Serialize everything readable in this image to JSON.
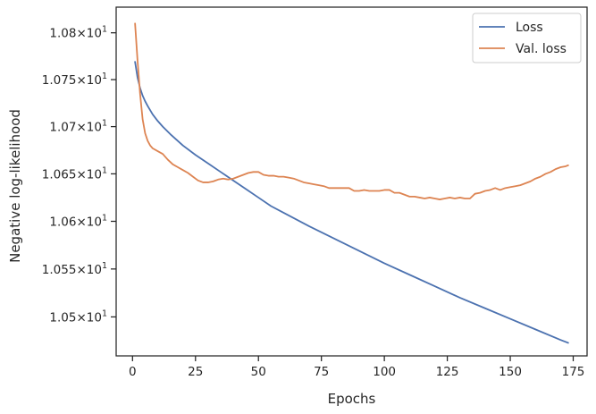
{
  "chart_data": {
    "type": "line",
    "xlabel": "Epochs",
    "ylabel": "Negative log-likelihood",
    "xlim": [
      -6.5,
      180.5
    ],
    "ylim": [
      10.4595,
      10.8275
    ],
    "x_ticks": [
      0,
      25,
      50,
      75,
      100,
      125,
      150,
      175
    ],
    "x_tick_labels": [
      "0",
      "25",
      "50",
      "75",
      "100",
      "125",
      "150",
      "175"
    ],
    "y_ticks": [
      10.5,
      10.55,
      10.6,
      10.65,
      10.7,
      10.75,
      10.8
    ],
    "y_tick_labels": [
      {
        "mantissa": "1.05",
        "times": "×",
        "base": "10",
        "exp": "1"
      },
      {
        "mantissa": "1.055",
        "times": "×",
        "base": "10",
        "exp": "1"
      },
      {
        "mantissa": "1.06",
        "times": "×",
        "base": "10",
        "exp": "1"
      },
      {
        "mantissa": "1.065",
        "times": "×",
        "base": "10",
        "exp": "1"
      },
      {
        "mantissa": "1.07",
        "times": "×",
        "base": "10",
        "exp": "1"
      },
      {
        "mantissa": "1.075",
        "times": "×",
        "base": "10",
        "exp": "1"
      },
      {
        "mantissa": "1.08",
        "times": "×",
        "base": "10",
        "exp": "1"
      }
    ],
    "scale_y": "log",
    "grid": false,
    "legend_position": "top-right",
    "series": [
      {
        "name": "Loss",
        "color": "#4c72b0",
        "x": [
          1,
          2,
          3,
          4,
          5,
          6,
          8,
          10,
          12,
          15,
          20,
          25,
          30,
          35,
          40,
          45,
          50,
          55,
          60,
          70,
          80,
          90,
          100,
          110,
          120,
          130,
          140,
          150,
          160,
          170,
          173
        ],
        "y": [
          10.769,
          10.752,
          10.741,
          10.733,
          10.727,
          10.722,
          10.713,
          10.706,
          10.7,
          10.692,
          10.68,
          10.67,
          10.661,
          10.652,
          10.643,
          10.634,
          10.625,
          10.616,
          10.609,
          10.595,
          10.582,
          10.569,
          10.556,
          10.544,
          10.532,
          10.52,
          10.509,
          10.498,
          10.487,
          10.476,
          10.473
        ]
      },
      {
        "name": "Val. loss",
        "color": "#dd8452",
        "x": [
          1,
          2,
          3,
          4,
          5,
          6,
          7,
          8,
          10,
          12,
          14,
          16,
          18,
          20,
          22,
          24,
          26,
          28,
          30,
          32,
          34,
          36,
          38,
          40,
          42,
          44,
          46,
          48,
          50,
          52,
          54,
          56,
          58,
          60,
          62,
          64,
          66,
          68,
          70,
          72,
          74,
          76,
          78,
          80,
          82,
          84,
          86,
          88,
          90,
          92,
          94,
          96,
          98,
          100,
          102,
          104,
          106,
          108,
          110,
          112,
          114,
          116,
          118,
          120,
          122,
          124,
          126,
          128,
          130,
          132,
          134,
          136,
          138,
          140,
          142,
          144,
          146,
          148,
          150,
          152,
          154,
          156,
          158,
          160,
          162,
          164,
          166,
          168,
          170,
          172,
          173
        ],
        "y": [
          10.81,
          10.77,
          10.735,
          10.708,
          10.693,
          10.685,
          10.68,
          10.677,
          10.674,
          10.671,
          10.665,
          10.66,
          10.657,
          10.654,
          10.651,
          10.647,
          10.643,
          10.641,
          10.641,
          10.642,
          10.644,
          10.645,
          10.644,
          10.645,
          10.647,
          10.649,
          10.651,
          10.652,
          10.652,
          10.649,
          10.648,
          10.648,
          10.647,
          10.647,
          10.646,
          10.645,
          10.643,
          10.641,
          10.64,
          10.639,
          10.638,
          10.637,
          10.635,
          10.635,
          10.635,
          10.635,
          10.635,
          10.632,
          10.632,
          10.633,
          10.632,
          10.632,
          10.632,
          10.633,
          10.633,
          10.63,
          10.63,
          10.628,
          10.626,
          10.626,
          10.625,
          10.624,
          10.625,
          10.624,
          10.623,
          10.624,
          10.625,
          10.624,
          10.625,
          10.624,
          10.624,
          10.629,
          10.63,
          10.632,
          10.633,
          10.635,
          10.633,
          10.635,
          10.636,
          10.637,
          10.638,
          10.64,
          10.642,
          10.645,
          10.647,
          10.65,
          10.652,
          10.655,
          10.657,
          10.658,
          10.659
        ]
      }
    ]
  }
}
